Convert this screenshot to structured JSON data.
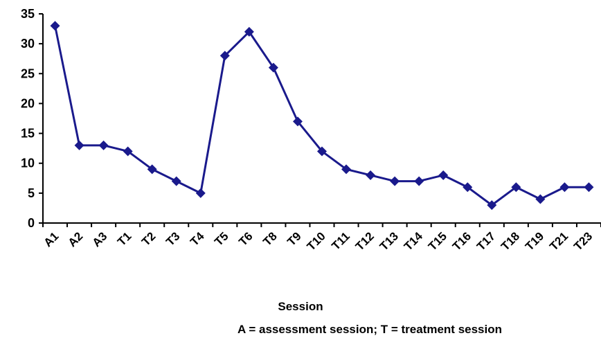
{
  "chart_data": {
    "type": "line",
    "categories": [
      "A1",
      "A2",
      "A3",
      "T1",
      "T2",
      "T3",
      "T4",
      "T5",
      "T6",
      "T8",
      "T9",
      "T10",
      "T11",
      "T12",
      "T13",
      "T14",
      "T15",
      "T16",
      "T17",
      "T18",
      "T19",
      "T21",
      "T23"
    ],
    "series": [
      {
        "values": [
          33,
          13,
          13,
          12,
          9,
          7,
          5,
          28,
          32,
          26,
          17,
          12,
          9,
          8,
          7,
          7,
          8,
          6,
          3,
          6,
          4,
          6,
          6
        ]
      }
    ],
    "xlabel": "Session",
    "xlabel_note": "A =  assessment  session;  T = treatment  session",
    "ylabel": "",
    "ylim": [
      0,
      35
    ],
    "yticks": [
      0,
      5,
      10,
      15,
      20,
      25,
      30,
      35
    ],
    "grid": false,
    "legend": "none",
    "line_color": "#1a1a8c"
  }
}
